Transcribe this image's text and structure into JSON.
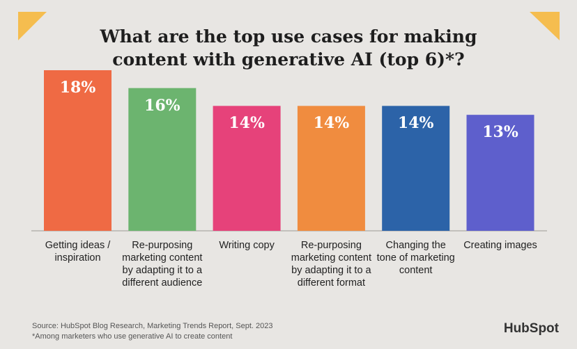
{
  "chart_data": {
    "type": "bar",
    "title": "What are the top use cases for making content with generative AI (top 6)*?",
    "categories": [
      "Getting ideas / inspiration",
      "Re-purposing marketing content by adapting it to a different audience",
      "Writing copy",
      "Re-purposing marketing content by adapting it to a different format",
      "Changing the tone of marketing content",
      "Creating images"
    ],
    "values": [
      18,
      16,
      14,
      14,
      14,
      13
    ],
    "value_labels": [
      "18%",
      "16%",
      "14%",
      "14%",
      "14%",
      "13%"
    ],
    "colors": [
      "#ef6a44",
      "#6cb46f",
      "#e6427a",
      "#f08c3f",
      "#2c63a8",
      "#5e5fcc"
    ],
    "source": "Source: HubSpot Blog Research, Marketing Trends Report, Sept. 2023",
    "footnote": "*Among marketers who use generative AI to create content",
    "brand": "HubSpot"
  }
}
